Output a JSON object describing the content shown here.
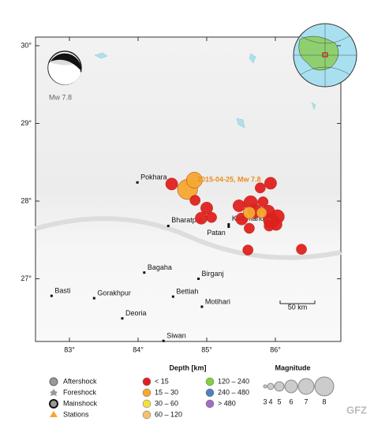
{
  "map": {
    "lat_ticks": [
      {
        "value": 30,
        "label": "30°"
      },
      {
        "value": 29,
        "label": "29°"
      },
      {
        "value": 28,
        "label": "28°"
      },
      {
        "value": 27,
        "label": "27°"
      }
    ],
    "lon_ticks": [
      {
        "value": 83,
        "label": "83°"
      },
      {
        "value": 84,
        "label": "84°"
      },
      {
        "value": 85,
        "label": "85°"
      },
      {
        "value": 86,
        "label": "86°"
      }
    ],
    "cities": [
      {
        "name": "Pokhara",
        "lon": 83.99,
        "lat": 28.24
      },
      {
        "name": "Bharatpur",
        "lon": 84.44,
        "lat": 27.68
      },
      {
        "name": "Kathmandu",
        "lon": 85.32,
        "lat": 27.7
      },
      {
        "name": "Patan",
        "lon": 85.32,
        "lat": 27.67
      },
      {
        "name": "Bagaha",
        "lon": 84.09,
        "lat": 27.08
      },
      {
        "name": "Birganj",
        "lon": 84.88,
        "lat": 27.0
      },
      {
        "name": "Basti",
        "lon": 82.74,
        "lat": 26.78
      },
      {
        "name": "Gorakhpur",
        "lon": 83.36,
        "lat": 26.75
      },
      {
        "name": "Bettiah",
        "lon": 84.51,
        "lat": 26.77
      },
      {
        "name": "Deoria",
        "lon": 83.77,
        "lat": 26.49
      },
      {
        "name": "Motihari",
        "lon": 84.93,
        "lat": 26.64
      },
      {
        "name": "Siwan",
        "lon": 84.37,
        "lat": 26.2
      }
    ],
    "events": [
      {
        "lon": 84.82,
        "lat": 28.27,
        "mag": 6.6,
        "color": "#f5a830"
      },
      {
        "lon": 84.72,
        "lat": 28.15,
        "mag": 7.8,
        "color": "#f5a830"
      },
      {
        "lon": 84.49,
        "lat": 28.22,
        "mag": 5.5,
        "color": "#e02020"
      },
      {
        "lon": 85.93,
        "lat": 28.23,
        "mag": 5.5,
        "color": "#e02020"
      },
      {
        "lon": 85.78,
        "lat": 28.17,
        "mag": 5,
        "color": "#e02020"
      },
      {
        "lon": 85.0,
        "lat": 27.91,
        "mag": 5.5,
        "color": "#e02020"
      },
      {
        "lon": 84.83,
        "lat": 28.01,
        "mag": 5,
        "color": "#e02020"
      },
      {
        "lon": 85.07,
        "lat": 27.79,
        "mag": 5,
        "color": "#e02020"
      },
      {
        "lon": 84.92,
        "lat": 27.78,
        "mag": 5.5,
        "color": "#e02020"
      },
      {
        "lon": 85.47,
        "lat": 27.94,
        "mag": 5.5,
        "color": "#e02020"
      },
      {
        "lon": 85.64,
        "lat": 27.98,
        "mag": 6,
        "color": "#e02020"
      },
      {
        "lon": 85.82,
        "lat": 27.99,
        "mag": 5,
        "color": "#e02020"
      },
      {
        "lon": 85.7,
        "lat": 27.87,
        "mag": 6,
        "color": "#e02020"
      },
      {
        "lon": 85.9,
        "lat": 27.87,
        "mag": 5.5,
        "color": "#e02020"
      },
      {
        "lon": 86.03,
        "lat": 27.8,
        "mag": 6,
        "color": "#e02020"
      },
      {
        "lon": 85.94,
        "lat": 27.75,
        "mag": 6.5,
        "color": "#e02020"
      },
      {
        "lon": 85.51,
        "lat": 27.77,
        "mag": 5.5,
        "color": "#e02020"
      },
      {
        "lon": 85.91,
        "lat": 27.68,
        "mag": 5,
        "color": "#e02020"
      },
      {
        "lon": 86.01,
        "lat": 27.7,
        "mag": 5.5,
        "color": "#e02020"
      },
      {
        "lon": 85.62,
        "lat": 27.65,
        "mag": 5,
        "color": "#e02020"
      },
      {
        "lon": 85.6,
        "lat": 27.37,
        "mag": 5,
        "color": "#e02020"
      },
      {
        "lon": 86.38,
        "lat": 27.38,
        "mag": 5,
        "color": "#e02020"
      },
      {
        "lon": 85.62,
        "lat": 27.85,
        "mag": 5.5,
        "color": "#f5a830"
      },
      {
        "lon": 85.8,
        "lat": 27.85,
        "mag": 5,
        "color": "#f5a830"
      }
    ],
    "mainshock_label": "2015-04-25, Mw 7.8",
    "beachball_label": "Mw 7.8",
    "scale_label": "50 km"
  },
  "legend": {
    "types": [
      "Aftershock",
      "Foreshock",
      "Mainshock",
      "Stations"
    ],
    "depth_title": "Depth [km]",
    "depths": [
      {
        "label": "< 15",
        "color": "#e02020"
      },
      {
        "label": "15 – 30",
        "color": "#f5a830"
      },
      {
        "label": "30 – 60",
        "color": "#f0e040"
      },
      {
        "label": "60 – 120",
        "color": "#f5c070"
      },
      {
        "label": "120 – 240",
        "color": "#80d040"
      },
      {
        "label": "240 – 480",
        "color": "#5080c0"
      },
      {
        "label": "> 480",
        "color": "#a070c0"
      }
    ],
    "magnitude_title": "Magnitude",
    "magnitudes": [
      3,
      4,
      5,
      6,
      7,
      8
    ]
  },
  "logo": "GFZ"
}
